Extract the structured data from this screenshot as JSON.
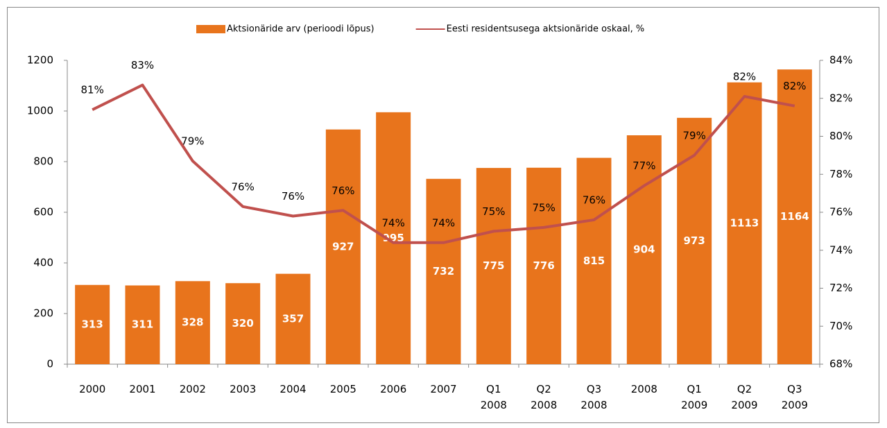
{
  "chart_data": {
    "type": "bar-line",
    "categories": [
      "2000",
      "2001",
      "2002",
      "2003",
      "2004",
      "2005",
      "2006",
      "2007",
      "Q1 2008",
      "Q2 2008",
      "Q3 2008",
      "2008",
      "Q1 2009",
      "Q2 2009",
      "Q3 2009"
    ],
    "series": [
      {
        "name": "Aktsionäride arv (perioodi lõpus)",
        "type": "bar",
        "color": "#e8741c",
        "values": [
          313,
          311,
          328,
          320,
          357,
          927,
          995,
          732,
          775,
          776,
          815,
          904,
          973,
          1113,
          1164
        ]
      },
      {
        "name": "Eesti residentsusega aktsionäride oskaal, %",
        "type": "line",
        "axis": "y2",
        "color": "#c0504d",
        "values": [
          81.4,
          82.7,
          78.7,
          76.3,
          75.8,
          76.1,
          74.4,
          74.4,
          75.0,
          75.2,
          75.6,
          77.4,
          79.0,
          82.1,
          81.6
        ],
        "value_labels": [
          "81%",
          "83%",
          "79%",
          "76%",
          "76%",
          "76%",
          "74%",
          "74%",
          "75%",
          "75%",
          "76%",
          "77%",
          "79%",
          "82%",
          "82%"
        ]
      }
    ],
    "ylim": [
      0,
      1200
    ],
    "yticks": [
      0,
      200,
      400,
      600,
      800,
      1000,
      1200
    ],
    "y2lim": [
      68,
      84
    ],
    "y2ticks": [
      {
        "value": 68,
        "label": "68%"
      },
      {
        "value": 70,
        "label": "70%"
      },
      {
        "value": 72,
        "label": "72%"
      },
      {
        "value": 74,
        "label": "74%"
      },
      {
        "value": 76,
        "label": "76%"
      },
      {
        "value": 78,
        "label": "78%"
      },
      {
        "value": 80,
        "label": "80%"
      },
      {
        "value": 82,
        "label": "82%"
      },
      {
        "value": 84,
        "label": "84%"
      }
    ],
    "legend": "top"
  }
}
